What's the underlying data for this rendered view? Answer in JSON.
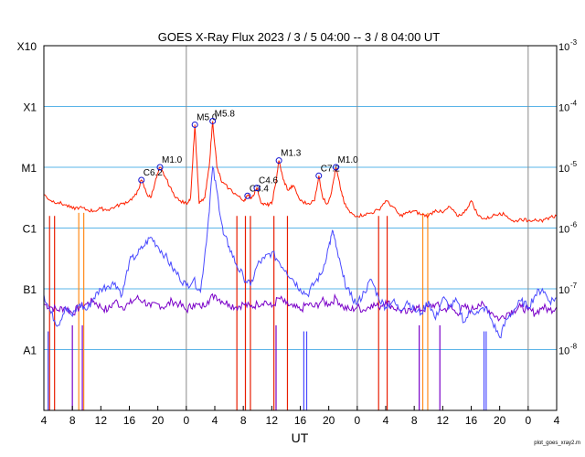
{
  "chart_data": {
    "type": "line",
    "title": "GOES X-Ray Flux   2023 /  3  /  5   04:00 --  3  /  8   04:00   UT",
    "xlabel": "UT",
    "footer": "plot_goes_xray2.m",
    "x_start_hour": 4,
    "x_range_hours": [
      0,
      72
    ],
    "x_ticks": [
      "4",
      "8",
      "12",
      "16",
      "20",
      "0",
      "4",
      "8",
      "12",
      "16",
      "20",
      "0",
      "4",
      "8",
      "12",
      "16",
      "20",
      "0",
      "4"
    ],
    "ylim_log10": [
      -9,
      -3
    ],
    "left_y_labels": [
      {
        "label": "X10",
        "log10": -3
      },
      {
        "label": "X1",
        "log10": -4
      },
      {
        "label": "M1",
        "log10": -5
      },
      {
        "label": "C1",
        "log10": -6
      },
      {
        "label": "B1",
        "log10": -7
      },
      {
        "label": "A1",
        "log10": -8
      }
    ],
    "right_y_labels": [
      {
        "base": "10",
        "exp": "-3",
        "log10": -3
      },
      {
        "base": "10",
        "exp": "-4",
        "log10": -4
      },
      {
        "base": "10",
        "exp": "-5",
        "log10": -5
      },
      {
        "base": "10",
        "exp": "-6",
        "log10": -6
      },
      {
        "base": "10",
        "exp": "-7",
        "log10": -7
      },
      {
        "base": "10",
        "exp": "-8",
        "log10": -8
      }
    ],
    "day_boundaries_hours": [
      20,
      44,
      68
    ],
    "flares": [
      {
        "label": "C6.2",
        "t": 13.7,
        "log10": -5.21
      },
      {
        "label": "M1.0",
        "t": 16.3,
        "log10": -5.0
      },
      {
        "label": "M5.0",
        "t": 21.2,
        "log10": -4.3
      },
      {
        "label": "M5.8",
        "t": 23.7,
        "log10": -4.24
      },
      {
        "label": "C3.4",
        "t": 28.6,
        "log10": -5.47
      },
      {
        "label": "C4.6",
        "t": 29.9,
        "log10": -5.34
      },
      {
        "label": "M1.3",
        "t": 33.0,
        "log10": -4.89
      },
      {
        "label": "C7.2",
        "t": 38.6,
        "log10": -5.14
      },
      {
        "label": "M1.0",
        "t": 41.0,
        "log10": -5.0
      }
    ],
    "series": [
      {
        "name": "",
        "color": "#ff2000",
        "t": [
          0,
          1,
          2,
          3,
          4,
          5,
          6,
          7,
          8,
          9,
          10,
          11,
          12,
          13,
          13.7,
          14.5,
          15,
          15.6,
          16.3,
          17,
          18,
          19,
          20,
          20.6,
          21.2,
          21.8,
          22.6,
          23.2,
          23.7,
          24.3,
          25,
          26,
          27,
          28,
          28.6,
          29.2,
          29.9,
          30.6,
          31.3,
          32,
          32.5,
          33,
          33.6,
          34.3,
          35,
          36,
          37,
          38,
          38.6,
          39.2,
          39.8,
          40.4,
          41,
          41.6,
          42.2,
          43,
          44,
          45,
          46,
          47,
          48,
          49,
          50,
          51,
          52,
          53,
          54,
          55,
          56,
          57,
          58,
          59,
          60,
          61,
          62,
          63,
          64,
          65,
          66,
          67,
          68,
          69,
          70,
          71,
          72
        ],
        "log10": [
          -5.45,
          -5.55,
          -5.58,
          -5.62,
          -5.68,
          -5.66,
          -5.7,
          -5.72,
          -5.68,
          -5.7,
          -5.65,
          -5.6,
          -5.55,
          -5.45,
          -5.21,
          -5.45,
          -5.5,
          -5.25,
          -5.0,
          -5.15,
          -5.4,
          -5.55,
          -5.6,
          -5.5,
          -4.3,
          -5.6,
          -5.5,
          -5.0,
          -4.24,
          -5.0,
          -5.25,
          -5.35,
          -5.45,
          -5.55,
          -5.47,
          -5.5,
          -5.34,
          -5.6,
          -5.62,
          -5.6,
          -5.3,
          -4.89,
          -5.2,
          -5.38,
          -5.3,
          -5.55,
          -5.6,
          -5.55,
          -5.14,
          -5.52,
          -5.6,
          -5.4,
          -5.0,
          -5.32,
          -5.6,
          -5.75,
          -5.8,
          -5.78,
          -5.75,
          -5.7,
          -5.55,
          -5.65,
          -5.8,
          -5.75,
          -5.72,
          -5.78,
          -5.8,
          -5.7,
          -5.75,
          -5.65,
          -5.8,
          -5.75,
          -5.55,
          -5.8,
          -5.85,
          -5.8,
          -5.75,
          -5.8,
          -5.9,
          -5.85,
          -5.88,
          -5.85,
          -5.9,
          -5.82,
          -5.8
        ]
      },
      {
        "name": "",
        "color": "#4a4aff",
        "t": [
          0,
          1,
          2,
          3,
          4,
          5,
          6,
          7,
          8,
          9,
          10,
          11,
          12,
          13,
          14,
          15,
          16,
          17,
          18,
          19,
          20,
          21,
          22,
          23,
          23.7,
          24.5,
          25.2,
          26,
          27,
          28,
          29,
          30,
          31,
          32,
          33,
          34,
          35,
          36,
          37,
          38,
          39,
          40,
          40.6,
          41,
          42,
          43,
          44,
          45,
          46,
          47,
          48,
          49,
          50,
          51,
          52,
          53,
          54,
          55,
          56,
          57,
          58,
          59,
          60,
          61,
          62,
          63,
          64,
          65,
          66,
          67,
          68,
          69,
          70,
          71,
          72
        ],
        "log10": [
          -7.1,
          -7.4,
          -7.6,
          -7.3,
          -7.45,
          -7.25,
          -7.35,
          -7.15,
          -7.0,
          -6.95,
          -6.9,
          -7.1,
          -6.55,
          -6.45,
          -6.3,
          -6.15,
          -6.3,
          -6.45,
          -6.65,
          -6.8,
          -6.95,
          -6.85,
          -7.05,
          -6.0,
          -5.0,
          -5.55,
          -6.1,
          -6.3,
          -6.6,
          -6.8,
          -6.95,
          -6.6,
          -6.5,
          -6.4,
          -6.55,
          -6.7,
          -6.85,
          -7.0,
          -7.1,
          -6.9,
          -6.75,
          -6.3,
          -6.05,
          -6.3,
          -6.8,
          -7.1,
          -7.25,
          -7.05,
          -6.85,
          -7.15,
          -7.3,
          -7.2,
          -7.35,
          -7.2,
          -7.35,
          -7.4,
          -7.2,
          -7.5,
          -7.15,
          -7.3,
          -7.2,
          -7.55,
          -7.35,
          -7.4,
          -7.3,
          -7.55,
          -7.8,
          -7.5,
          -7.35,
          -7.2,
          -7.3,
          -7.1,
          -7.0,
          -7.2,
          -7.15
        ]
      },
      {
        "name": "",
        "color": "#7a00c8",
        "t": [
          0,
          1,
          2,
          3,
          4,
          5,
          6,
          7,
          8,
          9,
          10,
          11,
          12,
          13,
          14,
          15,
          16,
          17,
          18,
          19,
          20,
          21,
          22,
          23,
          24,
          25,
          26,
          27,
          28,
          29,
          30,
          31,
          32,
          33,
          34,
          35,
          36,
          37,
          38,
          39,
          40,
          41,
          42,
          43,
          44,
          45,
          46,
          47,
          48,
          49,
          50,
          51,
          52,
          53,
          54,
          55,
          56,
          57,
          58,
          59,
          60,
          61,
          62,
          63,
          64,
          65,
          66,
          67,
          68,
          69,
          70,
          71,
          72
        ],
        "log10": [
          -7.25,
          -7.3,
          -7.35,
          -7.3,
          -7.4,
          -7.3,
          -7.25,
          -7.2,
          -7.3,
          -7.35,
          -7.2,
          -7.3,
          -7.25,
          -7.15,
          -7.2,
          -7.3,
          -7.25,
          -7.3,
          -7.2,
          -7.25,
          -7.35,
          -7.25,
          -7.3,
          -7.2,
          -7.1,
          -7.2,
          -7.25,
          -7.3,
          -7.25,
          -7.3,
          -7.25,
          -7.2,
          -7.3,
          -7.15,
          -7.25,
          -7.3,
          -7.35,
          -7.25,
          -7.3,
          -7.2,
          -7.25,
          -7.15,
          -7.3,
          -7.35,
          -7.3,
          -7.35,
          -7.25,
          -7.3,
          -7.2,
          -7.3,
          -7.35,
          -7.4,
          -7.3,
          -7.35,
          -7.3,
          -7.25,
          -7.35,
          -7.3,
          -7.4,
          -7.3,
          -7.35,
          -7.25,
          -7.3,
          -7.4,
          -7.5,
          -7.4,
          -7.35,
          -7.3,
          -7.35,
          -7.4,
          -7.3,
          -7.35,
          -7.3
        ]
      }
    ],
    "red_dropouts_hours": [
      0.8,
      1.5,
      27.1,
      28.3,
      29.0,
      32.3,
      34.2,
      47.0,
      48.2
    ],
    "orange_dropouts_hours": [
      4.9,
      5.6,
      53.2,
      53.9
    ],
    "violet_dropouts_hours": [
      4.0,
      5.4,
      32.6,
      52.7,
      55.6
    ],
    "blue_dropouts_hours": [
      0.6,
      36.5,
      36.9,
      61.8,
      62.1
    ]
  }
}
